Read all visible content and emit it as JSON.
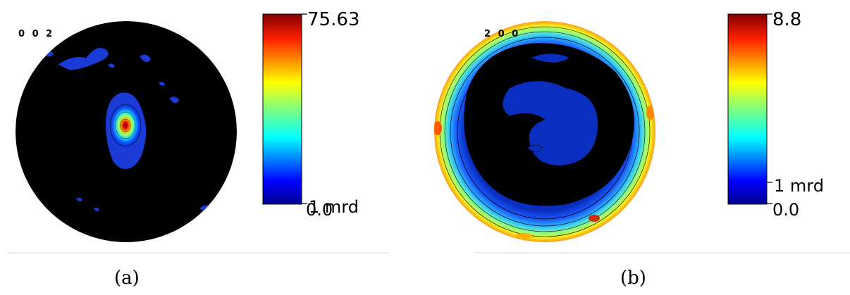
{
  "chart_data": [
    {
      "type": "heatmap",
      "pole_figure_label": "0 0 2",
      "subfigure_label": "(a)",
      "colorbar": {
        "max_label": "75.63",
        "mid_label": "1 mrd",
        "min_label": "0.0",
        "range": [
          0.0,
          75.63
        ],
        "colormap": "jet"
      },
      "background_color": "#000000",
      "peak": {
        "position": "center",
        "value": 75.63
      }
    },
    {
      "type": "heatmap",
      "pole_figure_label": "2 0 0",
      "subfigure_label": "(b)",
      "colorbar": {
        "max_label": "8.8",
        "mid_label": "1 mrd",
        "min_label": "0.0",
        "range": [
          0.0,
          8.8
        ],
        "colormap": "jet"
      },
      "background_color": "#000000",
      "intensity_distribution": "ring near rim"
    }
  ]
}
